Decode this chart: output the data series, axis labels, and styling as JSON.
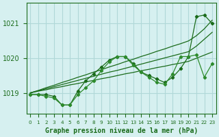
{
  "title": "Graphe pression niveau de la mer (hPa)",
  "xlabel_hours": [
    0,
    1,
    2,
    3,
    4,
    5,
    6,
    7,
    8,
    9,
    10,
    11,
    12,
    13,
    14,
    15,
    16,
    17,
    18,
    19,
    20,
    21,
    22,
    23
  ],
  "lines": [
    {
      "x": [
        0,
        1,
        2,
        3,
        4,
        5,
        6,
        7,
        8,
        9,
        10,
        11,
        12,
        13,
        14,
        15,
        16,
        17,
        18,
        19,
        20,
        21,
        22,
        23
      ],
      "y": [
        1019.0,
        1019.05,
        1019.09,
        1019.14,
        1019.18,
        1019.23,
        1019.27,
        1019.32,
        1019.36,
        1019.41,
        1019.45,
        1019.5,
        1019.55,
        1019.59,
        1019.64,
        1019.68,
        1019.73,
        1019.77,
        1019.82,
        1019.86,
        1019.91,
        1020.0,
        1020.09,
        1020.18
      ],
      "color": "#1a6b1a",
      "lw": 0.9,
      "marker": null,
      "ms": 0
    },
    {
      "x": [
        0,
        1,
        2,
        3,
        4,
        5,
        6,
        7,
        8,
        9,
        10,
        11,
        12,
        13,
        14,
        15,
        16,
        17,
        18,
        19,
        20,
        21,
        22,
        23
      ],
      "y": [
        1019.0,
        1019.06,
        1019.12,
        1019.18,
        1019.24,
        1019.3,
        1019.36,
        1019.42,
        1019.48,
        1019.54,
        1019.6,
        1019.65,
        1019.71,
        1019.77,
        1019.83,
        1019.89,
        1019.95,
        1020.01,
        1020.07,
        1020.13,
        1020.19,
        1020.35,
        1020.55,
        1020.75
      ],
      "color": "#1a6b1a",
      "lw": 0.9,
      "marker": null,
      "ms": 0
    },
    {
      "x": [
        0,
        1,
        2,
        3,
        4,
        5,
        6,
        7,
        8,
        9,
        10,
        11,
        12,
        13,
        14,
        15,
        16,
        17,
        18,
        19,
        20,
        21,
        22,
        23
      ],
      "y": [
        1019.0,
        1019.07,
        1019.15,
        1019.22,
        1019.3,
        1019.37,
        1019.45,
        1019.52,
        1019.6,
        1019.67,
        1019.75,
        1019.82,
        1019.9,
        1019.97,
        1020.05,
        1020.12,
        1020.2,
        1020.27,
        1020.35,
        1020.42,
        1020.5,
        1020.65,
        1020.85,
        1021.1
      ],
      "color": "#1a6b1a",
      "lw": 0.9,
      "marker": null,
      "ms": 0
    },
    {
      "x": [
        0,
        1,
        2,
        3,
        4,
        5,
        6,
        7,
        8,
        9,
        10,
        11,
        12,
        13,
        14,
        15,
        16,
        17,
        18,
        19,
        20,
        21,
        22,
        23
      ],
      "y": [
        1018.95,
        1018.95,
        1018.95,
        1018.9,
        1018.65,
        1018.65,
        1019.05,
        1019.35,
        1019.55,
        1019.75,
        1019.95,
        1020.05,
        1020.05,
        1019.85,
        1019.6,
        1019.5,
        1019.4,
        1019.3,
        1019.45,
        1019.7,
        1020.05,
        1021.2,
        1021.25,
        1021.0
      ],
      "color": "#1a6b1a",
      "lw": 0.9,
      "marker": "D",
      "ms": 2.2
    },
    {
      "x": [
        0,
        1,
        2,
        3,
        4,
        5,
        6,
        7,
        8,
        9,
        10,
        11,
        12,
        13,
        14,
        15,
        16,
        17,
        18,
        19,
        20,
        21,
        22,
        23
      ],
      "y": [
        1018.95,
        1018.95,
        1018.9,
        1018.85,
        1018.65,
        1018.65,
        1018.95,
        1019.15,
        1019.35,
        1019.65,
        1019.9,
        1020.05,
        1020.05,
        1019.8,
        1019.6,
        1019.45,
        1019.3,
        1019.25,
        1019.55,
        1020.05,
        1020.05,
        1020.1,
        1019.45,
        1019.85
      ],
      "color": "#2d8b2d",
      "lw": 0.9,
      "marker": "D",
      "ms": 2.2
    }
  ],
  "ylim": [
    1018.4,
    1021.6
  ],
  "yticks": [
    1019.0,
    1020.0,
    1021.0
  ],
  "xlim": [
    -0.5,
    23.5
  ],
  "bg_color": "#d6f0f0",
  "grid_color": "#b0d8d8",
  "line_color": "#1a6b1a",
  "title_color": "#1a6b1a",
  "tick_color": "#1a6b1a",
  "axis_color": "#1a6b1a"
}
